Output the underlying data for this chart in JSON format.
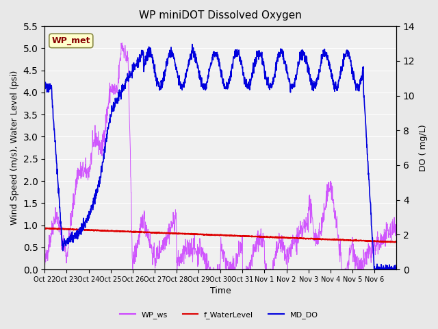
{
  "title": "WP miniDOT Dissolved Oxygen",
  "xlabel": "Time",
  "ylabel_left": "Wind Speed (m/s), Water Level (psi)",
  "ylabel_right": "DO ( mg/L)",
  "ylim_left": [
    0.0,
    5.5
  ],
  "ylim_right": [
    0,
    14
  ],
  "yticks_left": [
    0.0,
    0.5,
    1.0,
    1.5,
    2.0,
    2.5,
    3.0,
    3.5,
    4.0,
    4.5,
    5.0,
    5.5
  ],
  "yticks_right": [
    0,
    2,
    4,
    6,
    8,
    10,
    12,
    14
  ],
  "bg_color": "#e8e8e8",
  "plot_bg": "#f0f0f0",
  "grid_color": "white",
  "wp_ws_color": "#cc44ff",
  "f_water_color": "#dd0000",
  "md_do_color": "#0000dd",
  "legend_items": [
    "WP_ws",
    "f_WaterLevel",
    "MD_DO"
  ],
  "annotation_text": "WP_met",
  "annotation_bg": "#ffffcc",
  "annotation_border": "#888844",
  "annotation_text_color": "#880000",
  "xticklabels": [
    "Oct 22",
    "Oct 23",
    "Oct 24",
    "Oct 25",
    "Oct 26",
    "Oct 27",
    "Oct 28",
    "Oct 29",
    "Oct 30",
    "Oct 31",
    "Nov 1",
    "Nov 2",
    "Nov 3",
    "Nov 4",
    "Nov 5",
    "Nov 6"
  ],
  "xtick_positions": [
    0,
    1,
    2,
    3,
    4,
    5,
    6,
    7,
    8,
    9,
    10,
    11,
    12,
    13,
    14,
    15
  ]
}
